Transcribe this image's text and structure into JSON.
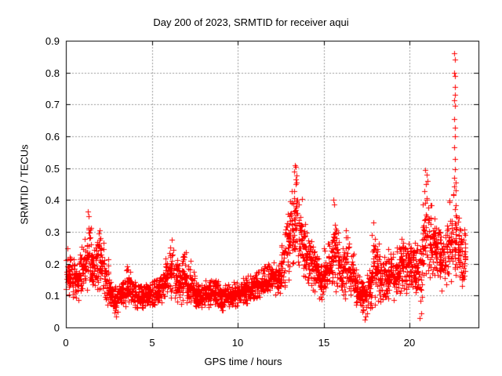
{
  "chart_data": {
    "type": "scatter",
    "title": "Day 200 of 2023, SRMTID for receiver aqui",
    "xlabel": "GPS time / hours",
    "ylabel": "SRMTID / TECUs",
    "xlim": [
      0,
      24
    ],
    "ylim": [
      0,
      0.9
    ],
    "xticks": {
      "values": [
        0,
        5,
        10,
        15,
        20
      ],
      "labels": [
        "0",
        "5",
        "10",
        "15",
        "20"
      ]
    },
    "yticks": {
      "values": [
        0,
        0.1,
        0.2,
        0.3,
        0.4,
        0.5,
        0.6,
        0.7,
        0.8,
        0.9
      ],
      "labels": [
        "0",
        "0.1",
        "0.2",
        "0.3",
        "0.4",
        "0.5",
        "0.6",
        "0.7",
        "0.8",
        "0.9"
      ]
    },
    "grid": true,
    "legend": "none",
    "marker": {
      "shape": "plus",
      "color": "#ff0000",
      "size": 7
    },
    "style": {
      "grid_color": "#9a9a9a",
      "axis_color": "#000000",
      "background": "#ffffff"
    },
    "series_name": "SRMTID",
    "sampling_note": "dense noisy scatter summarized as 0.25-hour envelope segments [x_start, min, max] plus explicit outlier points",
    "points_per_segment": 30,
    "segment_width": 0.25,
    "seed": 20230720,
    "envelope_segments": [
      [
        0,
        0.09,
        0.25
      ],
      [
        0.25,
        0.09,
        0.23
      ],
      [
        0.5,
        0.08,
        0.21
      ],
      [
        0.75,
        0.1,
        0.26
      ],
      [
        1,
        0.11,
        0.31
      ],
      [
        1.25,
        0.13,
        0.36
      ],
      [
        1.5,
        0.1,
        0.28
      ],
      [
        1.75,
        0.11,
        0.32
      ],
      [
        2,
        0.09,
        0.29
      ],
      [
        2.25,
        0.06,
        0.22
      ],
      [
        2.5,
        0.05,
        0.16
      ],
      [
        2.75,
        0.04,
        0.13
      ],
      [
        3,
        0.05,
        0.14
      ],
      [
        3.25,
        0.06,
        0.17
      ],
      [
        3.5,
        0.07,
        0.21
      ],
      [
        3.75,
        0.06,
        0.16
      ],
      [
        4,
        0.05,
        0.14
      ],
      [
        4.25,
        0.05,
        0.14
      ],
      [
        4.5,
        0.06,
        0.15
      ],
      [
        4.75,
        0.06,
        0.15
      ],
      [
        5,
        0.06,
        0.16
      ],
      [
        5.25,
        0.07,
        0.17
      ],
      [
        5.5,
        0.07,
        0.19
      ],
      [
        5.75,
        0.08,
        0.22
      ],
      [
        6,
        0.08,
        0.27
      ],
      [
        6.25,
        0.08,
        0.24
      ],
      [
        6.5,
        0.07,
        0.2
      ],
      [
        6.75,
        0.08,
        0.26
      ],
      [
        7,
        0.07,
        0.22
      ],
      [
        7.25,
        0.06,
        0.18
      ],
      [
        7.5,
        0.05,
        0.15
      ],
      [
        7.75,
        0.05,
        0.14
      ],
      [
        8,
        0.06,
        0.15
      ],
      [
        8.25,
        0.06,
        0.16
      ],
      [
        8.5,
        0.06,
        0.16
      ],
      [
        8.75,
        0.06,
        0.15
      ],
      [
        9,
        0.05,
        0.14
      ],
      [
        9.25,
        0.06,
        0.14
      ],
      [
        9.5,
        0.06,
        0.14
      ],
      [
        9.75,
        0.06,
        0.15
      ],
      [
        10,
        0.07,
        0.15
      ],
      [
        10.25,
        0.07,
        0.16
      ],
      [
        10.5,
        0.07,
        0.17
      ],
      [
        10.75,
        0.08,
        0.17
      ],
      [
        11,
        0.08,
        0.18
      ],
      [
        11.25,
        0.09,
        0.19
      ],
      [
        11.5,
        0.09,
        0.2
      ],
      [
        11.75,
        0.1,
        0.21
      ],
      [
        12,
        0.1,
        0.22
      ],
      [
        12.25,
        0.09,
        0.2
      ],
      [
        12.5,
        0.11,
        0.27
      ],
      [
        12.75,
        0.14,
        0.37
      ],
      [
        13,
        0.17,
        0.45
      ],
      [
        13.25,
        0.19,
        0.5
      ],
      [
        13.5,
        0.17,
        0.42
      ],
      [
        13.75,
        0.14,
        0.35
      ],
      [
        14,
        0.12,
        0.31
      ],
      [
        14.25,
        0.1,
        0.28
      ],
      [
        14.5,
        0.09,
        0.26
      ],
      [
        14.75,
        0.08,
        0.22
      ],
      [
        15,
        0.09,
        0.25
      ],
      [
        15.25,
        0.11,
        0.3
      ],
      [
        15.5,
        0.11,
        0.39
      ],
      [
        15.75,
        0.09,
        0.33
      ],
      [
        16,
        0.08,
        0.3
      ],
      [
        16.25,
        0.09,
        0.31
      ],
      [
        16.5,
        0.07,
        0.25
      ],
      [
        16.75,
        0.06,
        0.2
      ],
      [
        17,
        0.05,
        0.17
      ],
      [
        17.25,
        0.03,
        0.15
      ],
      [
        17.5,
        0.04,
        0.19
      ],
      [
        17.75,
        0.05,
        0.31
      ],
      [
        18,
        0.07,
        0.27
      ],
      [
        18.25,
        0.06,
        0.22
      ],
      [
        18.5,
        0.07,
        0.24
      ],
      [
        18.75,
        0.09,
        0.27
      ],
      [
        19,
        0.08,
        0.25
      ],
      [
        19.25,
        0.09,
        0.29
      ],
      [
        19.5,
        0.11,
        0.3
      ],
      [
        19.75,
        0.1,
        0.28
      ],
      [
        20,
        0.11,
        0.3
      ],
      [
        20.25,
        0.09,
        0.28
      ],
      [
        20.5,
        0.05,
        0.33
      ],
      [
        20.75,
        0.13,
        0.48
      ],
      [
        21,
        0.14,
        0.44
      ],
      [
        21.25,
        0.12,
        0.38
      ],
      [
        21.5,
        0.12,
        0.35
      ],
      [
        21.75,
        0.1,
        0.33
      ],
      [
        22,
        0.11,
        0.38
      ],
      [
        22.25,
        0.13,
        0.43
      ],
      [
        22.5,
        0.14,
        0.45
      ],
      [
        22.75,
        0.12,
        0.38
      ],
      [
        23,
        0.1,
        0.33
      ]
    ],
    "outlier_points": [
      [
        1.3,
        0.365
      ],
      [
        1.34,
        0.35
      ],
      [
        2.9,
        0.035
      ],
      [
        6.15,
        0.275
      ],
      [
        13.33,
        0.51
      ],
      [
        13.38,
        0.505
      ],
      [
        13.3,
        0.49
      ],
      [
        13.42,
        0.478
      ],
      [
        13.36,
        0.465
      ],
      [
        15.58,
        0.4
      ],
      [
        15.62,
        0.385
      ],
      [
        17.9,
        0.33
      ],
      [
        17.4,
        0.025
      ],
      [
        17.45,
        0.035
      ],
      [
        20.6,
        0.03
      ],
      [
        20.65,
        0.045
      ],
      [
        20.92,
        0.495
      ],
      [
        20.97,
        0.48
      ],
      [
        21.03,
        0.46
      ],
      [
        22.6,
        0.86
      ],
      [
        22.62,
        0.84
      ],
      [
        22.59,
        0.8
      ],
      [
        22.63,
        0.79
      ],
      [
        22.61,
        0.755
      ],
      [
        22.64,
        0.73
      ],
      [
        22.6,
        0.712
      ],
      [
        22.62,
        0.695
      ],
      [
        22.58,
        0.655
      ],
      [
        22.63,
        0.628
      ],
      [
        22.61,
        0.6
      ],
      [
        22.6,
        0.565
      ],
      [
        22.64,
        0.528
      ],
      [
        22.62,
        0.497
      ],
      [
        22.57,
        0.47
      ],
      [
        22.66,
        0.455
      ],
      [
        22.68,
        0.43
      ],
      [
        22.55,
        0.415
      ]
    ]
  }
}
